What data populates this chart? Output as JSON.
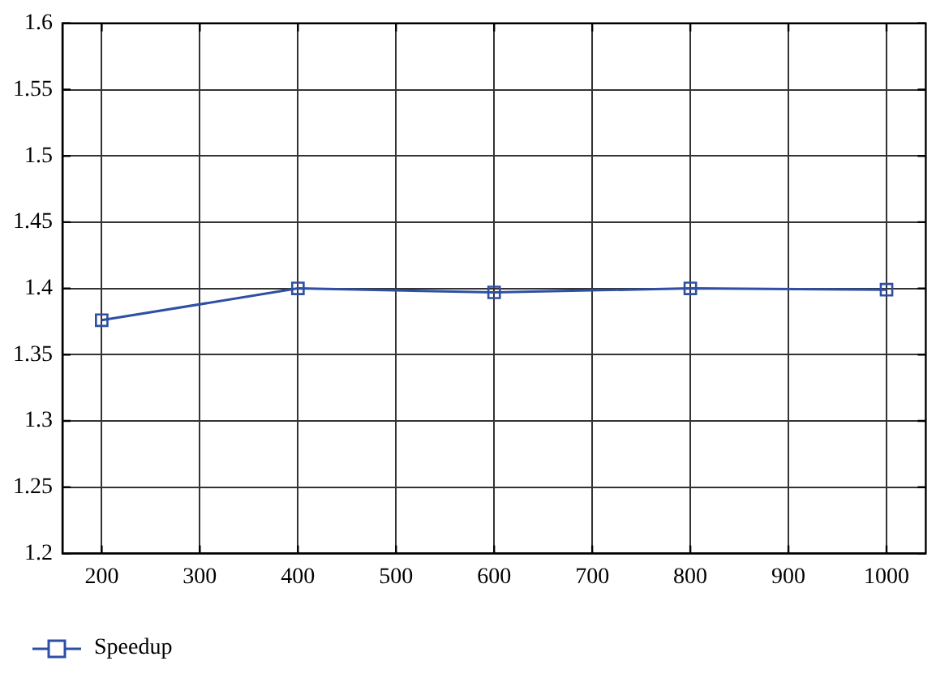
{
  "chart_data": {
    "type": "line",
    "x": [
      200,
      400,
      600,
      800,
      1000
    ],
    "series": [
      {
        "name": "Speedup",
        "color": "#2e4fa3",
        "values": [
          1.376,
          1.4,
          1.397,
          1.4,
          1.399
        ]
      }
    ],
    "xlim": [
      160,
      1040
    ],
    "xticks": [
      200,
      300,
      400,
      500,
      600,
      700,
      800,
      900,
      1000
    ],
    "ylim": [
      1.2,
      1.6
    ],
    "yticks": [
      1.2,
      1.25,
      1.3,
      1.35,
      1.4,
      1.45,
      1.5,
      1.55,
      1.6
    ],
    "grid": true,
    "legend": "bottom left",
    "marker": "square",
    "line_style": "solid"
  }
}
